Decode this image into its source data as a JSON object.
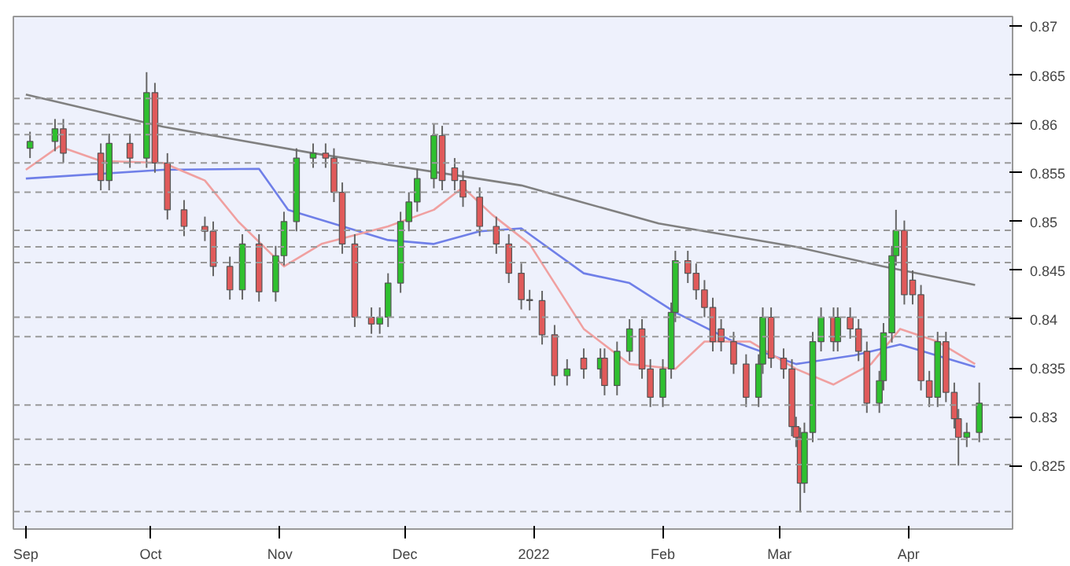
{
  "chart_data": {
    "type": "candlestick",
    "x": [
      "2021-09-02",
      "2021-09-08",
      "2021-09-10",
      "2021-09-19",
      "2021-09-21",
      "2021-09-26",
      "2021-09-30",
      "2021-10-02",
      "2021-10-05",
      "2021-10-09",
      "2021-10-14",
      "2021-10-16",
      "2021-10-20",
      "2021-10-23",
      "2021-10-27",
      "2021-10-31",
      "2021-11-02",
      "2021-11-05",
      "2021-11-09",
      "2021-11-12",
      "2021-11-14",
      "2021-11-16",
      "2021-11-19",
      "2021-11-23",
      "2021-11-25",
      "2021-11-27",
      "2021-11-30",
      "2021-12-02",
      "2021-12-04",
      "2021-12-08",
      "2021-12-10",
      "2021-12-13",
      "2021-12-15",
      "2021-12-19",
      "2021-12-23",
      "2021-12-26",
      "2021-12-29",
      "2021-12-31",
      "2022-01-03",
      "2022-01-06",
      "2022-01-09",
      "2022-01-13",
      "2022-01-17",
      "2022-01-18",
      "2022-01-21",
      "2022-01-24",
      "2022-01-27",
      "2022-01-29",
      "2022-02-01",
      "2022-02-03",
      "2022-02-04",
      "2022-02-07",
      "2022-02-09",
      "2022-02-11",
      "2022-02-13",
      "2022-02-15",
      "2022-02-18",
      "2022-02-21",
      "2022-02-24",
      "2022-02-25",
      "2022-02-27",
      "2022-03-02",
      "2022-03-04",
      "2022-03-05",
      "2022-03-06",
      "2022-03-07",
      "2022-03-09",
      "2022-03-11",
      "2022-03-14",
      "2022-03-15",
      "2022-03-18",
      "2022-03-20",
      "2022-03-22",
      "2022-03-25",
      "2022-03-26",
      "2022-03-28",
      "2022-03-29",
      "2022-03-31",
      "2022-04-02",
      "2022-04-04",
      "2022-04-06",
      "2022-04-08",
      "2022-04-10",
      "2022-04-12",
      "2022-04-13",
      "2022-04-15",
      "2022-04-18"
    ],
    "ohlc": [
      [
        0.8575,
        0.8592,
        0.8565,
        0.8582
      ],
      [
        0.8582,
        0.8605,
        0.8572,
        0.8595
      ],
      [
        0.8595,
        0.8605,
        0.856,
        0.857
      ],
      [
        0.857,
        0.858,
        0.8532,
        0.8542
      ],
      [
        0.8542,
        0.859,
        0.8532,
        0.858
      ],
      [
        0.858,
        0.859,
        0.8555,
        0.8565
      ],
      [
        0.8565,
        0.8653,
        0.8555,
        0.8632
      ],
      [
        0.8632,
        0.8642,
        0.855,
        0.856
      ],
      [
        0.856,
        0.857,
        0.8502,
        0.8512
      ],
      [
        0.8512,
        0.8522,
        0.8485,
        0.8495
      ],
      [
        0.8495,
        0.8505,
        0.848,
        0.849
      ],
      [
        0.849,
        0.85,
        0.8444,
        0.8454
      ],
      [
        0.8454,
        0.8464,
        0.842,
        0.843
      ],
      [
        0.843,
        0.8487,
        0.842,
        0.8477
      ],
      [
        0.8477,
        0.8487,
        0.8418,
        0.8428
      ],
      [
        0.8428,
        0.8475,
        0.8418,
        0.8465
      ],
      [
        0.8465,
        0.851,
        0.8455,
        0.85
      ],
      [
        0.85,
        0.8575,
        0.849,
        0.8565
      ],
      [
        0.8565,
        0.858,
        0.8555,
        0.857
      ],
      [
        0.857,
        0.858,
        0.8555,
        0.8565
      ],
      [
        0.8565,
        0.8575,
        0.852,
        0.853
      ],
      [
        0.853,
        0.854,
        0.8467,
        0.8477
      ],
      [
        0.8477,
        0.8487,
        0.8392,
        0.8402
      ],
      [
        0.8402,
        0.8412,
        0.8385,
        0.8395
      ],
      [
        0.8395,
        0.8412,
        0.8385,
        0.8402
      ],
      [
        0.8402,
        0.8447,
        0.8392,
        0.8437
      ],
      [
        0.8437,
        0.851,
        0.8427,
        0.85
      ],
      [
        0.85,
        0.853,
        0.849,
        0.852
      ],
      [
        0.852,
        0.8554,
        0.851,
        0.8544
      ],
      [
        0.8544,
        0.86,
        0.8534,
        0.8588
      ],
      [
        0.8588,
        0.8598,
        0.8532,
        0.8542
      ],
      [
        0.8555,
        0.8565,
        0.8532,
        0.8542
      ],
      [
        0.8542,
        0.8552,
        0.8515,
        0.8525
      ],
      [
        0.8525,
        0.8535,
        0.8485,
        0.8495
      ],
      [
        0.8495,
        0.8505,
        0.8467,
        0.8477
      ],
      [
        0.8477,
        0.8487,
        0.8437,
        0.8447
      ],
      [
        0.8447,
        0.8457,
        0.841,
        0.842
      ],
      [
        0.842,
        0.843,
        0.8409,
        0.8419
      ],
      [
        0.8419,
        0.8429,
        0.8374,
        0.8384
      ],
      [
        0.8384,
        0.8394,
        0.8332,
        0.8342
      ],
      [
        0.8342,
        0.8359,
        0.8332,
        0.8349
      ],
      [
        0.836,
        0.837,
        0.8339,
        0.8349
      ],
      [
        0.8349,
        0.837,
        0.8339,
        0.836
      ],
      [
        0.836,
        0.837,
        0.8322,
        0.8332
      ],
      [
        0.8332,
        0.8377,
        0.8322,
        0.8367
      ],
      [
        0.8367,
        0.84,
        0.8357,
        0.839
      ],
      [
        0.839,
        0.84,
        0.8339,
        0.8349
      ],
      [
        0.8349,
        0.8359,
        0.831,
        0.832
      ],
      [
        0.832,
        0.8359,
        0.831,
        0.8349
      ],
      [
        0.8349,
        0.8417,
        0.8339,
        0.8407
      ],
      [
        0.8407,
        0.847,
        0.8397,
        0.846
      ],
      [
        0.846,
        0.847,
        0.8437,
        0.8447
      ],
      [
        0.8447,
        0.8457,
        0.842,
        0.843
      ],
      [
        0.843,
        0.844,
        0.8402,
        0.8412
      ],
      [
        0.8412,
        0.8422,
        0.8367,
        0.8377
      ],
      [
        0.839,
        0.84,
        0.8367,
        0.8377
      ],
      [
        0.8377,
        0.8387,
        0.8344,
        0.8354
      ],
      [
        0.8354,
        0.8364,
        0.831,
        0.832
      ],
      [
        0.832,
        0.8364,
        0.831,
        0.8354
      ],
      [
        0.8354,
        0.8412,
        0.8344,
        0.8402
      ],
      [
        0.8402,
        0.8412,
        0.835,
        0.836
      ],
      [
        0.836,
        0.837,
        0.8339,
        0.8349
      ],
      [
        0.8349,
        0.8359,
        0.828,
        0.829
      ],
      [
        0.829,
        0.83,
        0.8269,
        0.8279
      ],
      [
        0.8279,
        0.8289,
        0.8202,
        0.8232
      ],
      [
        0.8232,
        0.8294,
        0.8222,
        0.8284
      ],
      [
        0.8284,
        0.8387,
        0.8274,
        0.8377
      ],
      [
        0.8377,
        0.8412,
        0.8367,
        0.8402
      ],
      [
        0.8402,
        0.8412,
        0.8367,
        0.8377
      ],
      [
        0.8377,
        0.8412,
        0.8367,
        0.8402
      ],
      [
        0.8402,
        0.8412,
        0.838,
        0.839
      ],
      [
        0.839,
        0.84,
        0.8357,
        0.8367
      ],
      [
        0.8367,
        0.8377,
        0.8304,
        0.8314
      ],
      [
        0.8314,
        0.8347,
        0.8304,
        0.8337
      ],
      [
        0.8337,
        0.8396,
        0.8327,
        0.8386
      ],
      [
        0.8386,
        0.8475,
        0.8376,
        0.8465
      ],
      [
        0.8465,
        0.8512,
        0.8455,
        0.8491
      ],
      [
        0.8491,
        0.8501,
        0.8415,
        0.8425
      ],
      [
        0.844,
        0.845,
        0.8415,
        0.8425
      ],
      [
        0.8425,
        0.8435,
        0.8327,
        0.8337
      ],
      [
        0.8337,
        0.8347,
        0.831,
        0.832
      ],
      [
        0.832,
        0.8387,
        0.831,
        0.8377
      ],
      [
        0.8377,
        0.8387,
        0.8315,
        0.8325
      ],
      [
        0.8325,
        0.8335,
        0.8288,
        0.8298
      ],
      [
        0.8298,
        0.8308,
        0.825,
        0.8279
      ],
      [
        0.8279,
        0.8294,
        0.8269,
        0.8284
      ],
      [
        0.8284,
        0.8335,
        0.8274,
        0.8314
      ]
    ],
    "series": [
      {
        "type": "line",
        "color": "#808080",
        "x": [
          "2021-09-01",
          "2021-10-04",
          "2021-11-09",
          "2021-12-29",
          "2022-01-31",
          "2022-03-05",
          "2022-03-26",
          "2022-04-17"
        ],
        "values": [
          0.863,
          0.8597,
          0.857,
          0.8537,
          0.8498,
          0.8474,
          0.8454,
          0.8435
        ]
      },
      {
        "type": "line",
        "color": "#6f7fe8",
        "x": [
          "2021-09-01",
          "2021-10-04",
          "2021-10-27",
          "2021-11-03",
          "2021-11-27",
          "2021-12-08",
          "2021-12-19",
          "2021-12-29",
          "2022-01-13",
          "2022-01-24",
          "2022-02-04",
          "2022-02-18",
          "2022-03-05",
          "2022-03-19",
          "2022-03-30",
          "2022-04-17"
        ],
        "values": [
          0.8544,
          0.8553,
          0.8554,
          0.8512,
          0.8481,
          0.8477,
          0.849,
          0.8493,
          0.8447,
          0.8437,
          0.8407,
          0.8377,
          0.8354,
          0.8363,
          0.8374,
          0.8351
        ]
      },
      {
        "type": "line",
        "color": "#f0a0a0",
        "x": [
          "2021-09-01",
          "2021-09-09",
          "2021-09-19",
          "2021-10-04",
          "2021-10-14",
          "2021-10-22",
          "2021-11-02",
          "2021-11-11",
          "2021-11-27",
          "2021-12-08",
          "2021-12-15",
          "2021-12-22",
          "2021-12-31",
          "2022-01-13",
          "2022-01-24",
          "2022-02-04",
          "2022-02-11",
          "2022-02-22",
          "2022-03-05",
          "2022-03-14",
          "2022-03-23",
          "2022-03-30",
          "2022-04-08",
          "2022-04-17"
        ],
        "values": [
          0.8553,
          0.8577,
          0.8562,
          0.856,
          0.8542,
          0.85,
          0.8454,
          0.8477,
          0.8495,
          0.8512,
          0.8535,
          0.8507,
          0.8477,
          0.839,
          0.8354,
          0.8349,
          0.8377,
          0.8377,
          0.8349,
          0.8333,
          0.8354,
          0.839,
          0.8377,
          0.8354
        ]
      }
    ],
    "ref_lines": [
      {
        "axis": "y",
        "value": 0.8626,
        "line_style": "dashed",
        "color": "#999999"
      },
      {
        "axis": "y",
        "value": 0.86,
        "line_style": "dashed",
        "color": "#999999"
      },
      {
        "axis": "y",
        "value": 0.8589,
        "line_style": "dashed",
        "color": "#999999"
      },
      {
        "axis": "y",
        "value": 0.856,
        "line_style": "dashed",
        "color": "#999999"
      },
      {
        "axis": "y",
        "value": 0.853,
        "line_style": "dashed",
        "color": "#999999"
      },
      {
        "axis": "y",
        "value": 0.8491,
        "line_style": "dashed",
        "color": "#999999"
      },
      {
        "axis": "y",
        "value": 0.8474,
        "line_style": "dashed",
        "color": "#999999"
      },
      {
        "axis": "y",
        "value": 0.8458,
        "line_style": "dashed",
        "color": "#999999"
      },
      {
        "axis": "y",
        "value": 0.8402,
        "line_style": "dashed",
        "color": "#999999"
      },
      {
        "axis": "y",
        "value": 0.8382,
        "line_style": "dashed",
        "color": "#999999"
      },
      {
        "axis": "y",
        "value": 0.8312,
        "line_style": "dashed",
        "color": "#999999"
      },
      {
        "axis": "y",
        "value": 0.8277,
        "line_style": "dashed",
        "color": "#999999"
      },
      {
        "axis": "y",
        "value": 0.8251,
        "line_style": "dashed",
        "color": "#999999"
      },
      {
        "axis": "y",
        "value": 0.8203,
        "line_style": "dashed",
        "color": "#999999"
      }
    ],
    "xlim": [
      "2021-08-29",
      "2022-04-26"
    ],
    "xticks": [
      {
        "value": "2021-09-01",
        "label": "Sep"
      },
      {
        "value": "2021-10-01",
        "label": "Oct"
      },
      {
        "value": "2021-11-01",
        "label": "Nov"
      },
      {
        "value": "2021-12-01",
        "label": "Dec"
      },
      {
        "value": "2022-01-01",
        "label": "2022"
      },
      {
        "value": "2022-02-01",
        "label": "Feb"
      },
      {
        "value": "2022-03-01",
        "label": "Mar"
      },
      {
        "value": "2022-04-01",
        "label": "Apr"
      }
    ],
    "ylim": [
      0.8185,
      0.871
    ],
    "yticks": [
      0.825,
      0.83,
      0.835,
      0.84,
      0.845,
      0.85,
      0.855,
      0.86,
      0.865,
      0.87
    ],
    "grid": false
  }
}
